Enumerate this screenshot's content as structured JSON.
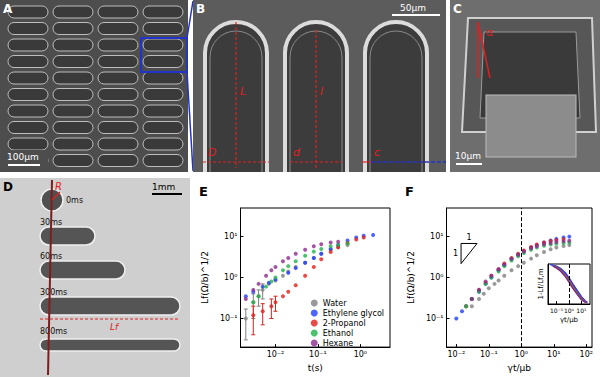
{
  "panels": {
    "A": {
      "label": "A",
      "scale_bar": "100μm"
    },
    "B": {
      "label": "B",
      "scale_bar": "50μm",
      "dimensions": {
        "length_outer": "L",
        "length_inner": "l",
        "width_outer": "D",
        "width_inner": "d",
        "wall": "c"
      }
    },
    "C": {
      "label": "C",
      "scale_bar": "10μm",
      "angle": "α"
    },
    "D": {
      "label": "D",
      "scale_bar": "1mm",
      "frames": [
        "0ms",
        "30ms",
        "60ms",
        "300ms",
        "800ms"
      ],
      "radius": "R",
      "length": "Lf"
    }
  },
  "chart_data": [
    {
      "title": "E",
      "type": "scatter",
      "marker": "circle",
      "log": true,
      "grid": false,
      "legend": "lower right",
      "x_label": "t(s)",
      "y_label": "Lf(Ω/b)^1/2",
      "xlim": [
        0.0015,
        5
      ],
      "ylim": [
        0.02,
        50
      ],
      "xticks": [
        {
          "value": 0.01,
          "label": "10⁻²"
        },
        {
          "value": 0.1,
          "label": "10⁻¹"
        },
        {
          "value": 1,
          "label": "10⁰"
        }
      ],
      "yticks": [
        {
          "value": 0.1,
          "label": "10⁻¹"
        },
        {
          "value": 1,
          "label": "10⁰"
        },
        {
          "value": 10,
          "label": "10¹"
        }
      ],
      "series": [
        {
          "name": "Water",
          "color": "#808080",
          "x": [
            0.002,
            0.003,
            0.004,
            0.005,
            0.007,
            0.01,
            0.015,
            0.02,
            0.03,
            0.05,
            0.08,
            0.12,
            0.2,
            0.3,
            0.5
          ],
          "values": [
            0.1,
            0.25,
            0.35,
            0.5,
            0.7,
            0.85,
            1.1,
            1.4,
            1.8,
            2.3,
            3,
            3.8,
            4.8,
            5.5,
            6.2
          ],
          "errors": [
            0.07,
            0.15,
            0.15,
            0.2,
            null,
            null,
            null,
            null,
            null,
            null,
            null,
            null,
            null,
            null,
            null
          ]
        },
        {
          "name": "Ethylene glycol",
          "color": "#1f3fff",
          "x": [
            0.002,
            0.003,
            0.005,
            0.007,
            0.01,
            0.02,
            0.03,
            0.05,
            0.08,
            0.12,
            0.2,
            0.3,
            0.5,
            0.8,
            1.2,
            2
          ],
          "values": [
            0.35,
            0.45,
            0.6,
            0.75,
            0.9,
            1.3,
            1.7,
            2.3,
            3.0,
            3.8,
            5,
            6.2,
            8,
            9.5,
            10.5,
            11
          ]
        },
        {
          "name": "2-Propanol",
          "color": "#e0201c",
          "x": [
            0.003,
            0.005,
            0.008,
            0.01,
            0.015,
            0.02,
            0.03,
            0.05,
            0.08,
            0.12,
            0.2,
            0.3,
            0.5,
            0.8,
            1.2
          ],
          "values": [
            0.12,
            0.15,
            0.2,
            0.25,
            0.35,
            0.45,
            0.65,
            1.1,
            1.8,
            2.8,
            4.2,
            5.5,
            7,
            8.5,
            9.5
          ],
          "errors": [
            0.08,
            0.08,
            0.1,
            0.1,
            null,
            null,
            null,
            null,
            null,
            null,
            null,
            null,
            null,
            null,
            null
          ]
        },
        {
          "name": "Ethanol",
          "color": "#22b14c",
          "x": [
            0.003,
            0.004,
            0.006,
            0.008,
            0.01,
            0.015,
            0.02,
            0.03,
            0.05,
            0.08,
            0.12,
            0.2,
            0.3,
            0.5
          ],
          "values": [
            0.25,
            0.35,
            0.6,
            0.8,
            1.0,
            1.5,
            1.9,
            2.5,
            3.4,
            4.3,
            5,
            5.8,
            6.3,
            6.8
          ]
        },
        {
          "name": "Hexane",
          "color": "#8b2a8b",
          "x": [
            0.002,
            0.003,
            0.004,
            0.006,
            0.008,
            0.01,
            0.015,
            0.02,
            0.03,
            0.05,
            0.08,
            0.12,
            0.2,
            0.3
          ],
          "values": [
            0.3,
            0.5,
            0.7,
            1.1,
            1.5,
            1.8,
            2.5,
            3.0,
            3.8,
            4.8,
            5.8,
            6.5,
            7.2,
            7.5
          ]
        }
      ]
    },
    {
      "title": "F",
      "type": "scatter",
      "marker": "circle",
      "log": true,
      "grid": false,
      "x_label": "γt/μb",
      "y_label": "Lf(Ω/b)^1/2",
      "xlim": [
        0.005,
        150
      ],
      "ylim": [
        0.02,
        50
      ],
      "xticks": [
        {
          "value": 0.01,
          "label": "10⁻²"
        },
        {
          "value": 0.1,
          "label": "10⁻¹"
        },
        {
          "value": 1,
          "label": "10⁰"
        },
        {
          "value": 10,
          "label": "10¹"
        },
        {
          "value": 100,
          "label": "10²"
        }
      ],
      "yticks": [
        {
          "value": 0.1,
          "label": "10⁻¹"
        },
        {
          "value": 1,
          "label": "10⁰"
        },
        {
          "value": 10,
          "label": "10¹"
        }
      ],
      "reference_lines": [
        {
          "x": 1,
          "line_style": "dashed"
        }
      ],
      "slope_triangle": {
        "slope": 1,
        "labels": [
          "1",
          "1"
        ]
      },
      "series": [
        {
          "name": "Water",
          "color": "#808080",
          "x": [
            0.03,
            0.05,
            0.07,
            0.1,
            0.15,
            0.2,
            0.3,
            0.5,
            0.8,
            1.2,
            2,
            3,
            5,
            8,
            12,
            20,
            30
          ],
          "values": [
            0.2,
            0.3,
            0.4,
            0.55,
            0.7,
            0.85,
            1.1,
            1.5,
            1.9,
            2.3,
            2.9,
            3.5,
            4.2,
            4.9,
            5.4,
            5.9,
            6.2
          ]
        },
        {
          "name": "Ethylene glycol",
          "color": "#1f3fff",
          "x": [
            0.01,
            0.015,
            0.02,
            0.03,
            0.05,
            0.08,
            0.12,
            0.2,
            0.3,
            0.5,
            0.8,
            1.2,
            2,
            3,
            5,
            8,
            12,
            20,
            30
          ],
          "values": [
            0.1,
            0.15,
            0.2,
            0.3,
            0.45,
            0.7,
            1.0,
            1.5,
            2,
            2.8,
            3.6,
            4.4,
            5.4,
            6.2,
            7.2,
            8.0,
            8.8,
            9.5,
            10
          ]
        },
        {
          "name": "2-Propanol",
          "color": "#e0201c",
          "x": [
            0.02,
            0.03,
            0.05,
            0.08,
            0.12,
            0.2,
            0.3,
            0.5,
            0.8,
            1.2,
            2,
            3,
            5,
            8,
            12,
            20
          ],
          "values": [
            0.2,
            0.3,
            0.5,
            0.75,
            1.1,
            1.6,
            2.2,
            3,
            3.8,
            4.6,
            5.6,
            6.4,
            7.2,
            7.8,
            8.2,
            8.6
          ]
        },
        {
          "name": "Ethanol",
          "color": "#22b14c",
          "x": [
            0.02,
            0.03,
            0.05,
            0.08,
            0.12,
            0.2,
            0.3,
            0.5,
            0.8,
            1.2,
            2,
            3,
            5,
            8,
            12,
            20,
            30
          ],
          "values": [
            0.2,
            0.3,
            0.45,
            0.7,
            1.0,
            1.4,
            1.9,
            2.6,
            3.3,
            4.0,
            4.8,
            5.4,
            6.0,
            6.4,
            6.7,
            7.0,
            7.2
          ]
        },
        {
          "name": "Hexane",
          "color": "#8b2a8b",
          "x": [
            0.03,
            0.05,
            0.08,
            0.12,
            0.2,
            0.3,
            0.5,
            0.8,
            1.2,
            2,
            3,
            5,
            8,
            12,
            20,
            30
          ],
          "values": [
            0.3,
            0.5,
            0.8,
            1.1,
            1.6,
            2.1,
            2.9,
            3.6,
            4.3,
            5.2,
            5.8,
            6.5,
            7.0,
            7.4,
            7.7,
            7.9
          ]
        }
      ],
      "inset": {
        "type": "line",
        "log": "x",
        "grid": false,
        "tick_labels": "x",
        "x_label": "γt/μb",
        "y_label": "1-Lf/Lf,m",
        "xlim": [
          0.02,
          50
        ],
        "ylim": [
          0,
          1
        ],
        "xticks": [
          {
            "value": 0.1,
            "label": "10⁻¹"
          },
          {
            "value": 1,
            "label": "10⁰"
          },
          {
            "value": 10,
            "label": "10¹"
          }
        ],
        "reference_lines": [
          {
            "x": 1,
            "line_style": "dashed"
          }
        ],
        "series": [
          {
            "name": "Water",
            "color": "#808080",
            "x": [
              0.05,
              0.1,
              0.2,
              0.5,
              1,
              2,
              5,
              10,
              20
            ],
            "values": [
              0.97,
              0.94,
              0.88,
              0.76,
              0.62,
              0.48,
              0.3,
              0.17,
              0.08
            ]
          },
          {
            "name": "Ethylene glycol",
            "color": "#1f3fff",
            "x": [
              0.03,
              0.05,
              0.1,
              0.2,
              0.5,
              1,
              2,
              5,
              10,
              20,
              30
            ],
            "values": [
              0.99,
              0.97,
              0.94,
              0.89,
              0.78,
              0.65,
              0.5,
              0.32,
              0.18,
              0.08,
              0.04
            ]
          },
          {
            "name": "2-Propanol",
            "color": "#e0201c",
            "x": [
              0.05,
              0.1,
              0.2,
              0.5,
              1,
              2,
              5,
              10,
              20
            ],
            "values": [
              0.96,
              0.92,
              0.86,
              0.73,
              0.6,
              0.45,
              0.27,
              0.14,
              0.06
            ]
          },
          {
            "name": "Ethanol",
            "color": "#22b14c",
            "x": [
              0.05,
              0.1,
              0.2,
              0.5,
              1,
              2,
              5,
              10,
              20
            ],
            "values": [
              0.95,
              0.91,
              0.84,
              0.71,
              0.57,
              0.42,
              0.25,
              0.12,
              0.05
            ]
          },
          {
            "name": "Hexane",
            "color": "#8b2a8b",
            "x": [
              0.05,
              0.1,
              0.2,
              0.5,
              1,
              2,
              5,
              10,
              20,
              30
            ],
            "values": [
              0.95,
              0.9,
              0.83,
              0.69,
              0.55,
              0.4,
              0.23,
              0.11,
              0.05,
              0.03
            ]
          }
        ]
      }
    }
  ]
}
